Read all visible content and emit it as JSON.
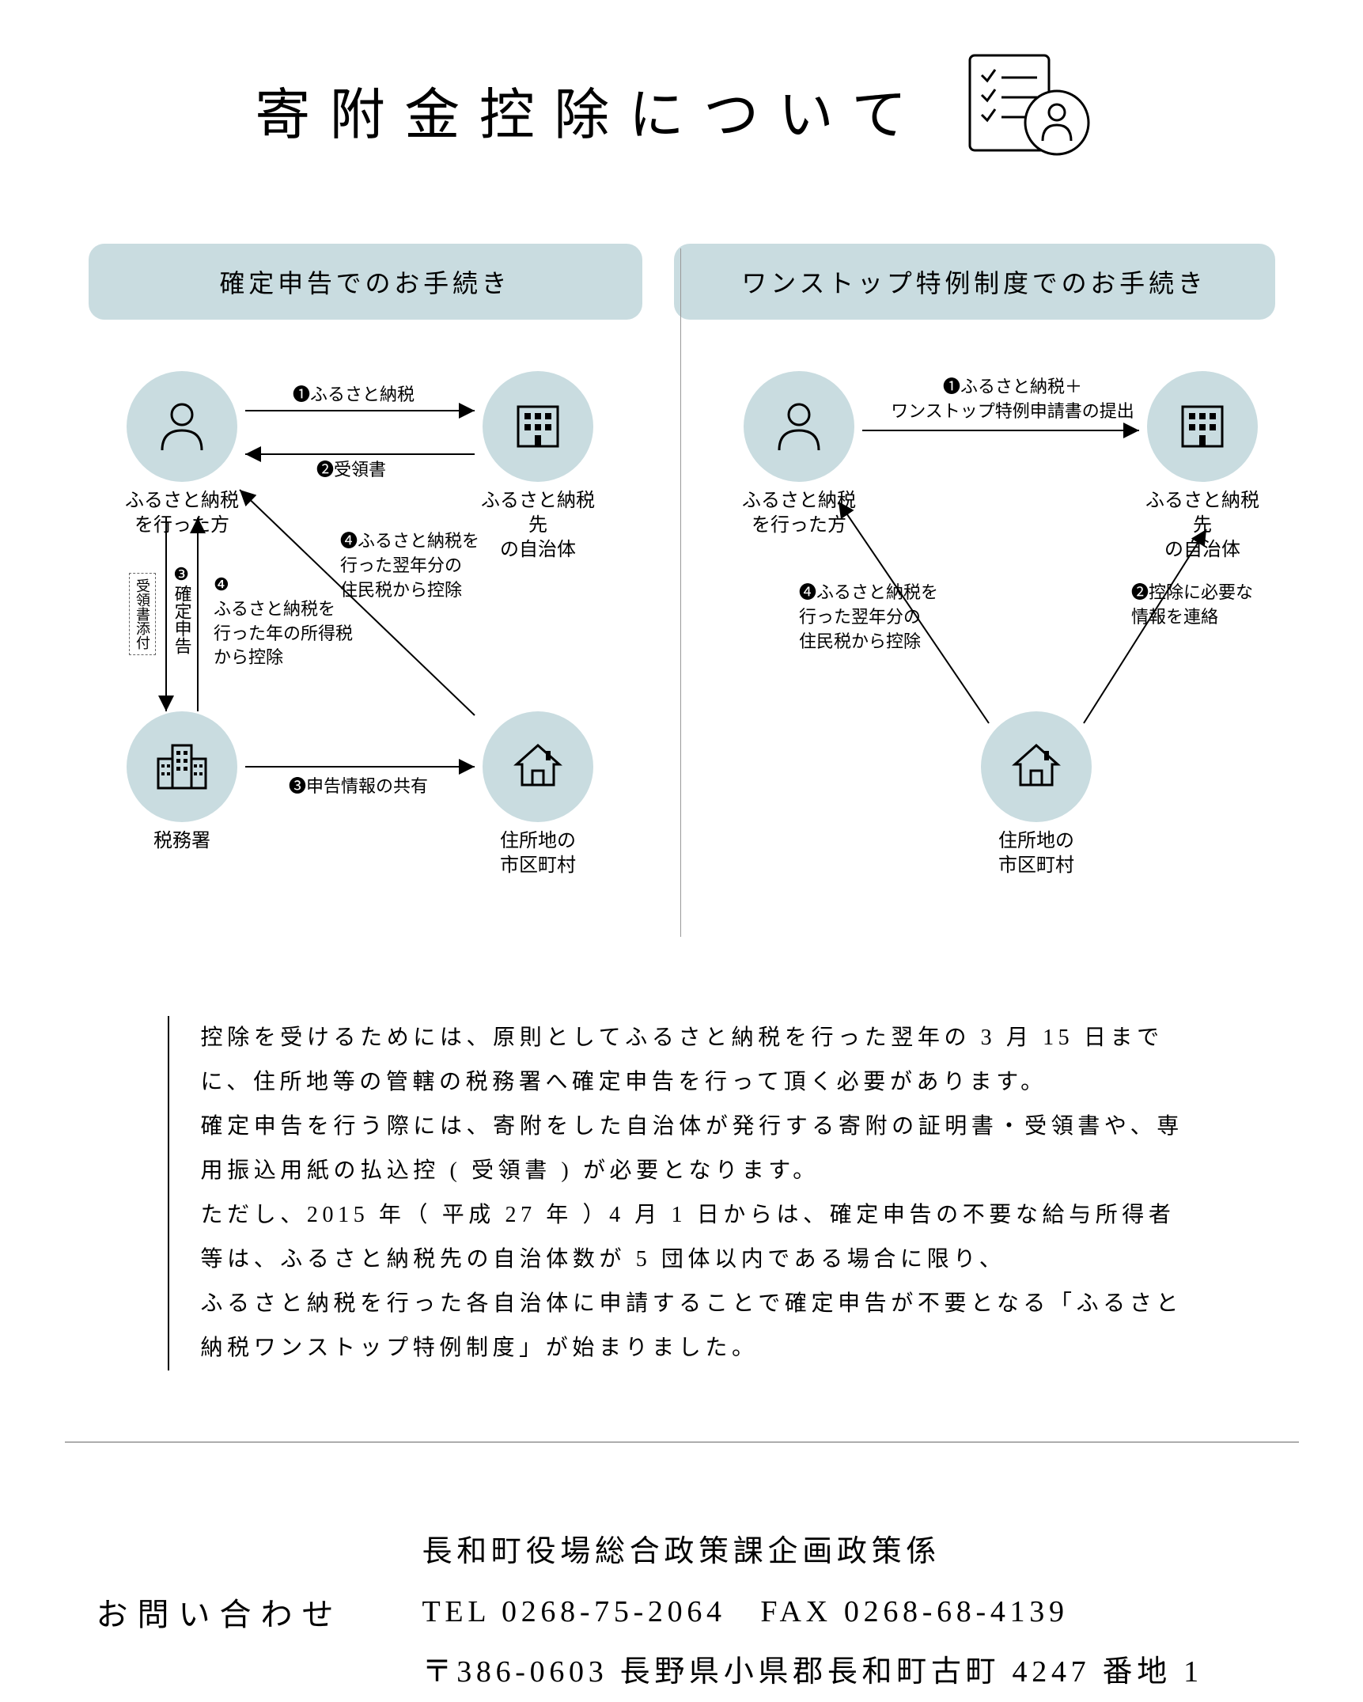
{
  "title": "寄附金控除について",
  "colors": {
    "accent": "#c9dce0",
    "text": "#000000",
    "divider": "#999999",
    "background": "#ffffff"
  },
  "tabs": {
    "left": "確定申告でのお手続き",
    "right": "ワンストップ特例制度でのお手続き"
  },
  "diagram_left": {
    "nodes": {
      "person": {
        "label": "ふるさと納税\nを行った方",
        "icon": "person"
      },
      "muni": {
        "label": "ふるさと納税先\nの自治体",
        "icon": "building"
      },
      "tax_office": {
        "label": "税務署",
        "icon": "office"
      },
      "city": {
        "label": "住所地の\n市区町村",
        "icon": "house"
      }
    },
    "edges": {
      "e1": "❶ふるさと納税",
      "e2": "❷受領書",
      "e3v_num": "❸",
      "e3v_text": "確定申告",
      "e3v_note": "受領書添付",
      "e4a": "❹\nふるさと納税を\n行った年の所得税\nから控除",
      "e3b": "❸申告情報の共有",
      "e4b": "❹ふるさと納税を\n行った翌年分の\n住民税から控除"
    }
  },
  "diagram_right": {
    "nodes": {
      "person": {
        "label": "ふるさと納税\nを行った方",
        "icon": "person"
      },
      "muni": {
        "label": "ふるさと納税先\nの自治体",
        "icon": "building"
      },
      "city": {
        "label": "住所地の\n市区町村",
        "icon": "house"
      }
    },
    "edges": {
      "e1": "❶ふるさと納税＋\nワンストップ特例申請書の提出",
      "e2": "❷控除に必要な\n情報を連絡",
      "e4": "❹ふるさと納税を\n行った翌年分の\n住民税から控除"
    }
  },
  "body": {
    "p1": "控除を受けるためには、原則としてふるさと納税を行った翌年の 3 月 15 日までに、住所地等の管轄の税務署へ確定申告を行って頂く必要があります。",
    "p2": "確定申告を行う際には、寄附をした自治体が発行する寄附の証明書・受領書や、専用振込用紙の払込控 ( 受領書 ) が必要となります。",
    "p3": "ただし、2015 年（ 平成 27 年 ）4 月 1 日からは、確定申告の不要な給与所得者等は、ふるさと納税先の自治体数が 5 団体以内である場合に限り、",
    "p4": "ふるさと納税を行った各自治体に申請することで確定申告が不要となる「ふるさと納税ワンストップ特例制度」が始まりました。"
  },
  "contact": {
    "label": "お問い合わせ",
    "org": "長和町役場総合政策課企画政策係",
    "tel": "TEL 0268-75-2064　FAX 0268-68-4139",
    "address": "〒386-0603 長野県小県郡長和町古町 4247 番地 1"
  }
}
